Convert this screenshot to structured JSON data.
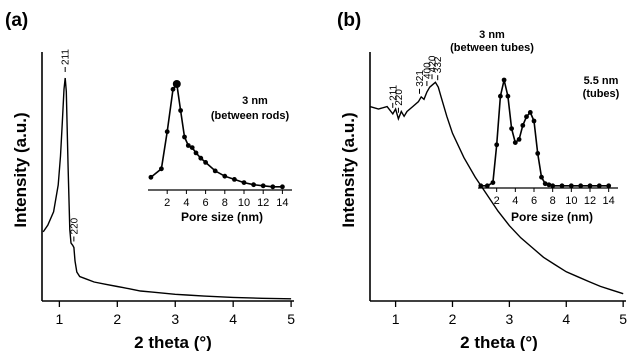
{
  "chart_data": [
    {
      "panel": "(a)",
      "type": "line",
      "xlabel": "2 theta (°)",
      "ylabel": "Intensity (a.u.)",
      "xlim": [
        0.7,
        5.05
      ],
      "x_ticks": [
        1,
        2,
        3,
        4,
        5
      ],
      "ylim": [
        0,
        1
      ],
      "series": [
        {
          "x": [
            0.72,
            0.8,
            0.9,
            0.98,
            1.02,
            1.05,
            1.08,
            1.1,
            1.12,
            1.15,
            1.18,
            1.2,
            1.23,
            1.25,
            1.27,
            1.3,
            1.35,
            1.45,
            1.6,
            1.8,
            2.0,
            2.1,
            2.2,
            2.4,
            2.6,
            2.8,
            3.0,
            3.2,
            3.5,
            4.0,
            4.5,
            5.0
          ],
          "y": [
            0.31,
            0.34,
            0.4,
            0.52,
            0.65,
            0.8,
            0.95,
            1.0,
            0.94,
            0.6,
            0.32,
            0.26,
            0.25,
            0.24,
            0.18,
            0.13,
            0.11,
            0.1,
            0.085,
            0.075,
            0.065,
            0.06,
            0.055,
            0.045,
            0.04,
            0.035,
            0.03,
            0.027,
            0.022,
            0.016,
            0.012,
            0.01
          ]
        }
      ],
      "peaks": [
        {
          "label": "211",
          "x": 1.1
        },
        {
          "label": "220",
          "x": 1.25
        }
      ],
      "inset": {
        "type": "line",
        "xlabel": "Pore size (nm)",
        "x_ticks": [
          2,
          4,
          6,
          8,
          10,
          12,
          14
        ],
        "xlim": [
          0,
          15
        ],
        "ylim": [
          0,
          1
        ],
        "annotation": [
          "3 nm",
          "(between rods)"
        ],
        "series": [
          {
            "x": [
              0.3,
              1.4,
              2.0,
              2.6,
              3.0,
              3.4,
              3.8,
              4.2,
              4.6,
              5.0,
              5.5,
              6.0,
              7.0,
              8.0,
              9.0,
              10.0,
              11.0,
              12.0,
              13.0,
              14.0
            ],
            "y": [
              0.12,
              0.2,
              0.55,
              0.95,
              1.0,
              0.75,
              0.5,
              0.42,
              0.4,
              0.35,
              0.3,
              0.26,
              0.18,
              0.13,
              0.1,
              0.07,
              0.05,
              0.04,
              0.03,
              0.03
            ]
          }
        ]
      }
    },
    {
      "panel": "(b)",
      "type": "line",
      "xlabel": "2 theta (°)",
      "ylabel": "Intensity (a.u.)",
      "xlim": [
        0.55,
        5.05
      ],
      "x_ticks": [
        1,
        2,
        3,
        4,
        5
      ],
      "ylim": [
        0,
        1
      ],
      "series": [
        {
          "x": [
            0.55,
            0.7,
            0.85,
            0.95,
            1.0,
            1.05,
            1.1,
            1.15,
            1.2,
            1.3,
            1.4,
            1.45,
            1.5,
            1.55,
            1.6,
            1.65,
            1.7,
            1.75,
            1.8,
            1.9,
            2.0,
            2.2,
            2.4,
            2.6,
            2.8,
            3.0,
            3.2,
            3.4,
            3.6,
            3.8,
            4.0,
            4.2,
            4.4,
            4.6,
            4.8,
            5.0
          ],
          "y": [
            0.8,
            0.79,
            0.8,
            0.77,
            0.79,
            0.75,
            0.78,
            0.76,
            0.78,
            0.8,
            0.82,
            0.84,
            0.83,
            0.86,
            0.88,
            0.89,
            0.9,
            0.88,
            0.84,
            0.76,
            0.69,
            0.59,
            0.51,
            0.44,
            0.37,
            0.31,
            0.26,
            0.22,
            0.18,
            0.15,
            0.12,
            0.1,
            0.08,
            0.06,
            0.045,
            0.03
          ]
        }
      ],
      "peaks": [
        {
          "label": "211",
          "x": 0.95
        },
        {
          "label": "220",
          "x": 1.05
        },
        {
          "label": "321",
          "x": 1.42
        },
        {
          "label": "400",
          "x": 1.55
        },
        {
          "label": "420",
          "x": 1.64
        },
        {
          "label": "332",
          "x": 1.74
        }
      ],
      "inset": {
        "type": "line",
        "xlabel": "Pore size (nm)",
        "x_ticks": [
          2,
          4,
          6,
          8,
          10,
          12,
          14
        ],
        "xlim": [
          0,
          15
        ],
        "ylim": [
          0,
          1
        ],
        "annotation": [
          "3 nm",
          "(between tubes)"
        ],
        "annotation2": [
          "5.5 nm",
          "(tubes)"
        ],
        "series": [
          {
            "x": [
              0.3,
              1.0,
              1.6,
              2.0,
              2.4,
              2.8,
              3.2,
              3.6,
              4.0,
              4.4,
              4.8,
              5.2,
              5.6,
              6.0,
              6.4,
              6.8,
              7.2,
              7.6,
              8.0,
              9.0,
              10.0,
              11.0,
              12.0,
              13.0,
              14.0
            ],
            "y": [
              0.02,
              0.02,
              0.05,
              0.4,
              0.85,
              1.0,
              0.85,
              0.55,
              0.42,
              0.45,
              0.58,
              0.66,
              0.7,
              0.62,
              0.32,
              0.1,
              0.04,
              0.03,
              0.02,
              0.02,
              0.02,
              0.02,
              0.02,
              0.02,
              0.02
            ]
          }
        ]
      }
    }
  ]
}
